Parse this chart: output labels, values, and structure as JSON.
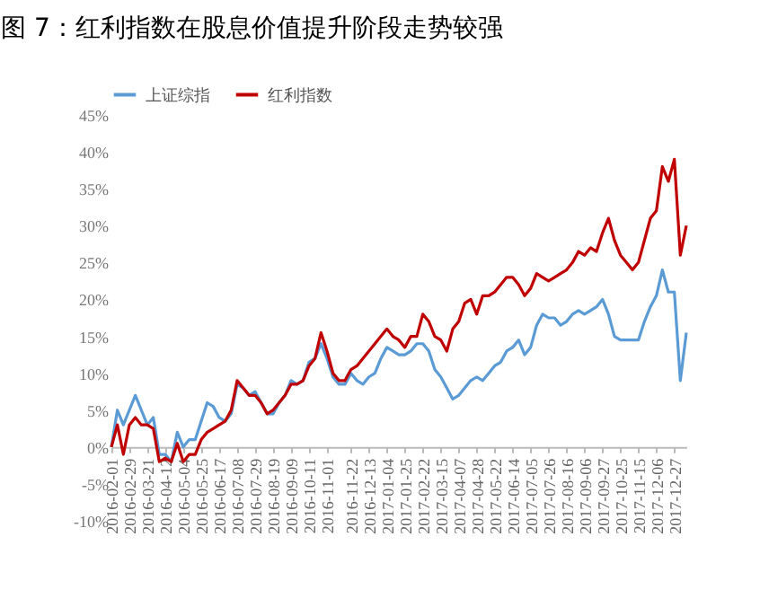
{
  "chart_data": {
    "type": "line",
    "title": "图 7：红利指数在股息价值提升阶段走势较强",
    "categories": [
      "2016-02-01",
      null,
      null,
      "2016-02-29",
      null,
      null,
      "2016-03-21",
      null,
      null,
      "2016-04-12",
      null,
      null,
      "2016-05-04",
      null,
      null,
      "2016-05-25",
      null,
      null,
      "2016-06-17",
      null,
      null,
      "2016-07-08",
      null,
      null,
      "2016-07-29",
      null,
      null,
      "2016-08-19",
      null,
      null,
      "2016-09-09",
      null,
      null,
      "2016-10-11",
      null,
      null,
      "2016-11-01",
      null,
      null,
      null,
      "2016-11-22",
      null,
      null,
      "2016-12-13",
      null,
      null,
      "2017-01-04",
      null,
      null,
      "2017-01-25",
      null,
      null,
      "2017-02-22",
      null,
      null,
      "2017-03-15",
      null,
      null,
      "2017-04-07",
      null,
      null,
      "2017-04-28",
      null,
      null,
      "2017-05-22",
      null,
      null,
      "2017-06-14",
      null,
      null,
      "2017-07-05",
      null,
      null,
      "2017-07-26",
      null,
      null,
      "2017-08-16",
      null,
      null,
      "2017-09-06",
      null,
      null,
      "2017-09-27",
      null,
      null,
      "2017-10-25",
      null,
      null,
      "2017-11-15",
      null,
      null,
      "2017-12-06",
      null,
      null,
      "2017-12-27",
      null,
      null
    ],
    "series": [
      {
        "name": "上证综指",
        "color": "#5b9bd5",
        "values": [
          0,
          5,
          3,
          5,
          7,
          5,
          3,
          4,
          -1,
          -1,
          -2,
          2,
          0,
          1,
          1,
          3.5,
          6,
          5.5,
          4,
          3.5,
          4.5,
          8.5,
          8,
          7,
          7.5,
          6,
          4.5,
          4.5,
          6,
          7,
          9,
          8.5,
          9,
          11.5,
          12,
          14,
          12,
          9.5,
          8.5,
          8.5,
          10,
          9,
          8.5,
          9.5,
          10,
          12,
          13.5,
          13,
          12.5,
          12.5,
          13,
          14,
          14,
          13,
          10.5,
          9.5,
          8,
          6.5,
          7,
          8,
          9,
          9.5,
          9,
          10,
          11,
          11.5,
          13,
          13.5,
          14.5,
          12.5,
          13.5,
          16.5,
          18,
          17.5,
          17.5,
          16.5,
          17,
          18,
          18.5,
          18,
          18.5,
          19,
          20,
          18,
          15,
          14.5,
          14.5,
          14.5,
          14.5,
          17,
          19,
          20.5,
          24,
          21,
          21,
          9,
          15.5
        ]
      },
      {
        "name": "红利指数",
        "color": "#c00000",
        "values": [
          0,
          3,
          -1,
          3,
          4,
          3,
          3,
          2.5,
          -2,
          -1.5,
          -2,
          0.5,
          -2,
          -1,
          -1,
          1,
          2,
          2.5,
          3,
          3.5,
          5,
          9,
          8,
          7,
          7,
          6,
          4.5,
          5,
          6,
          7,
          8.5,
          8.5,
          9,
          11,
          12,
          15.5,
          13,
          10,
          9,
          9,
          10.5,
          11,
          12,
          13,
          14,
          15,
          16,
          15,
          14.5,
          13.5,
          15,
          15,
          18,
          17,
          15,
          14.5,
          13,
          16,
          17,
          19.5,
          20,
          18,
          20.5,
          20.5,
          21,
          22,
          23,
          23,
          22,
          20.5,
          21.5,
          23.5,
          23,
          22.5,
          23,
          23.5,
          24,
          25,
          26.5,
          26,
          27,
          26.5,
          29,
          31,
          28,
          26,
          25,
          24,
          25,
          28,
          31,
          32,
          38,
          36,
          39,
          26,
          30
        ]
      }
    ],
    "ylim": [
      -10,
      45
    ],
    "yticks": [
      {
        "value": -10,
        "label": "-10%"
      },
      {
        "value": -5,
        "label": "-5%"
      },
      {
        "value": 0,
        "label": "0%"
      },
      {
        "value": 5,
        "label": "5%"
      },
      {
        "value": 10,
        "label": "10%"
      },
      {
        "value": 15,
        "label": "15%"
      },
      {
        "value": 20,
        "label": "20%"
      },
      {
        "value": 25,
        "label": "25%"
      },
      {
        "value": 30,
        "label": "30%"
      },
      {
        "value": 35,
        "label": "35%"
      },
      {
        "value": 40,
        "label": "40%"
      },
      {
        "value": 45,
        "label": "45%"
      }
    ],
    "grid": false,
    "legend": "top",
    "marker": "none",
    "line_style": "solid"
  }
}
